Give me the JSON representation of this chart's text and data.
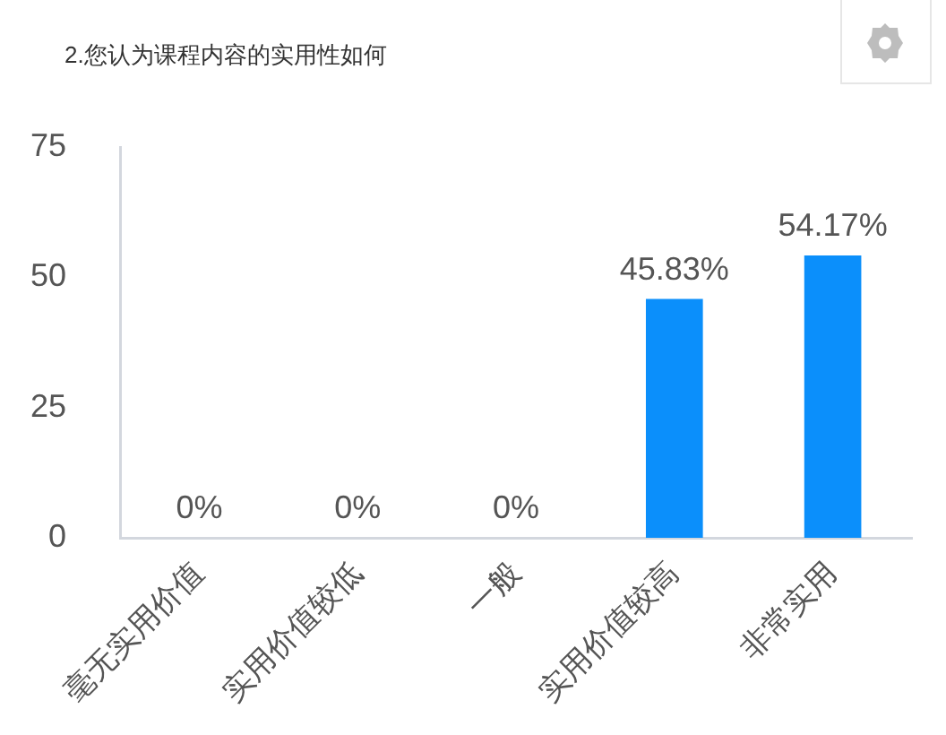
{
  "chart_data": {
    "type": "bar",
    "title": "2.您认为课程内容的实用性如何",
    "categories": [
      "毫无实用价值",
      "实用价值较低",
      "一般",
      "实用价值较高",
      "非常实用"
    ],
    "values": [
      0,
      0,
      0,
      45.83,
      54.17
    ],
    "color": "#0b8ffb",
    "value_labels": [
      "0%",
      "0%",
      "0%",
      "45.83%",
      "54.17%"
    ],
    "ylim": [
      0,
      75
    ],
    "yticks": [
      0,
      25,
      50,
      75
    ],
    "grid": false,
    "legend": false
  }
}
